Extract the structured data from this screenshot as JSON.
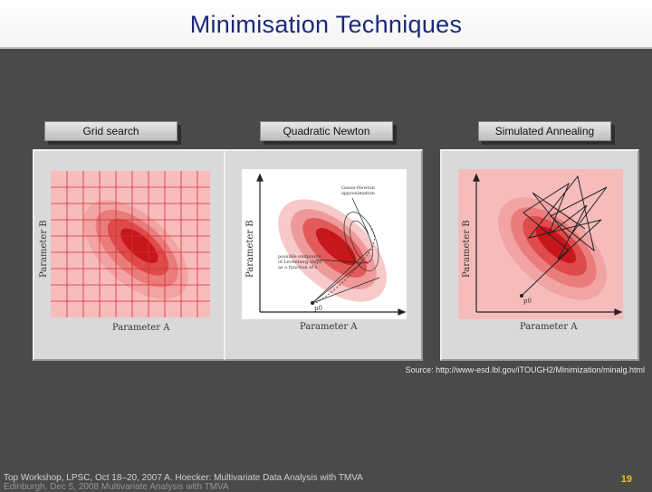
{
  "slide": {
    "title": "Minimisation Techniques",
    "source": "Source: http://www-esd.lbl.gov/iTOUGH2/Minimization/minalg.html",
    "page_number": "19",
    "footer_line1": "Top Workshop, LPSC, Oct 18–20, 2007   A. Hoecker: Multivariate Data Analysis with TMVA",
    "footer_line2": "Edinburgh, Dec 5, 2008   Multivariate Analysis with TMVA"
  },
  "panels": [
    {
      "label": "Grid search",
      "xlabel": "Parameter A",
      "ylabel": "Parameter B"
    },
    {
      "label": "Quadratic Newton",
      "xlabel": "Parameter A",
      "ylabel": "Parameter B",
      "annotation_top_1": "Gauss-Newton",
      "annotation_top_2": "approximation",
      "annotation_left_1": "possible endpoints",
      "annotation_left_2": "of Levenberg steps",
      "annotation_left_3": "as a function of λ",
      "point_label": "p0"
    },
    {
      "label": "Simulated Annealing",
      "xlabel": "Parameter A",
      "ylabel": "Parameter B",
      "point_label": "p0"
    }
  ],
  "colors": {
    "title": "#1c2a7a",
    "page_number": "#f0c020",
    "contour_dark": "#c8161d",
    "contour_light": "#f7c9c9"
  }
}
